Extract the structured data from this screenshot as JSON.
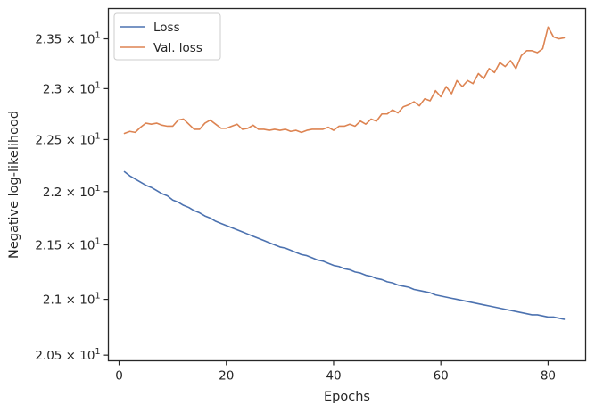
{
  "chart_data": {
    "type": "line",
    "title": "",
    "xlabel": "Epochs",
    "ylabel": "Negative log-likelihood",
    "xlim": [
      -2,
      87
    ],
    "ylim": [
      20.45,
      23.81
    ],
    "y_scale": "log",
    "grid": false,
    "legend_position": "top-left",
    "x_ticks": [
      {
        "value": 0,
        "label": "0"
      },
      {
        "value": 20,
        "label": "20"
      },
      {
        "value": 40,
        "label": "40"
      },
      {
        "value": 60,
        "label": "60"
      },
      {
        "value": 80,
        "label": "80"
      }
    ],
    "y_ticks": [
      {
        "value": 20.5,
        "mantissa": "2.05",
        "base": "10",
        "exp": "1"
      },
      {
        "value": 21.0,
        "mantissa": "2.1",
        "base": "10",
        "exp": "1"
      },
      {
        "value": 21.5,
        "mantissa": "2.15",
        "base": "10",
        "exp": "1"
      },
      {
        "value": 22.0,
        "mantissa": "2.2",
        "base": "10",
        "exp": "1"
      },
      {
        "value": 22.5,
        "mantissa": "2.25",
        "base": "10",
        "exp": "1"
      },
      {
        "value": 23.0,
        "mantissa": "2.3",
        "base": "10",
        "exp": "1"
      },
      {
        "value": 23.5,
        "mantissa": "2.35",
        "base": "10",
        "exp": "1"
      }
    ],
    "series": [
      {
        "name": "Loss",
        "color": "#4c72b0",
        "x": [
          1,
          2,
          3,
          4,
          5,
          6,
          7,
          8,
          9,
          10,
          11,
          12,
          13,
          14,
          15,
          16,
          17,
          18,
          19,
          20,
          21,
          22,
          23,
          24,
          25,
          26,
          27,
          28,
          29,
          30,
          31,
          32,
          33,
          34,
          35,
          36,
          37,
          38,
          39,
          40,
          41,
          42,
          43,
          44,
          45,
          46,
          47,
          48,
          49,
          50,
          51,
          52,
          53,
          54,
          55,
          56,
          57,
          58,
          59,
          60,
          61,
          62,
          63,
          64,
          65,
          66,
          67,
          68,
          69,
          70,
          71,
          72,
          73,
          74,
          75,
          76,
          77,
          78,
          79,
          80,
          81,
          82,
          83
        ],
        "values": [
          22.19,
          22.15,
          22.12,
          22.09,
          22.06,
          22.04,
          22.01,
          21.98,
          21.96,
          21.92,
          21.9,
          21.87,
          21.85,
          21.82,
          21.8,
          21.77,
          21.75,
          21.72,
          21.7,
          21.68,
          21.66,
          21.64,
          21.62,
          21.6,
          21.58,
          21.56,
          21.54,
          21.52,
          21.5,
          21.48,
          21.47,
          21.45,
          21.43,
          21.41,
          21.4,
          21.38,
          21.36,
          21.35,
          21.33,
          21.31,
          21.3,
          21.28,
          21.27,
          21.25,
          21.24,
          21.22,
          21.21,
          21.19,
          21.18,
          21.16,
          21.15,
          21.13,
          21.12,
          21.11,
          21.09,
          21.08,
          21.07,
          21.06,
          21.04,
          21.03,
          21.02,
          21.01,
          21.0,
          20.99,
          20.98,
          20.97,
          20.96,
          20.95,
          20.94,
          20.93,
          20.92,
          20.91,
          20.9,
          20.89,
          20.88,
          20.87,
          20.86,
          20.86,
          20.85,
          20.84,
          20.84,
          20.83,
          20.82
        ]
      },
      {
        "name": "Val. loss",
        "color": "#dd8452",
        "x": [
          1,
          2,
          3,
          4,
          5,
          6,
          7,
          8,
          9,
          10,
          11,
          12,
          13,
          14,
          15,
          16,
          17,
          18,
          19,
          20,
          21,
          22,
          23,
          24,
          25,
          26,
          27,
          28,
          29,
          30,
          31,
          32,
          33,
          34,
          35,
          36,
          37,
          38,
          39,
          40,
          41,
          42,
          43,
          44,
          45,
          46,
          47,
          48,
          49,
          50,
          51,
          52,
          53,
          54,
          55,
          56,
          57,
          58,
          59,
          60,
          61,
          62,
          63,
          64,
          65,
          66,
          67,
          68,
          69,
          70,
          71,
          72,
          73,
          74,
          75,
          76,
          77,
          78,
          79,
          80,
          81,
          82,
          83
        ],
        "values": [
          22.56,
          22.58,
          22.57,
          22.62,
          22.66,
          22.65,
          22.66,
          22.64,
          22.63,
          22.63,
          22.69,
          22.7,
          22.65,
          22.6,
          22.6,
          22.66,
          22.69,
          22.65,
          22.61,
          22.61,
          22.63,
          22.65,
          22.6,
          22.61,
          22.64,
          22.6,
          22.6,
          22.59,
          22.6,
          22.59,
          22.6,
          22.58,
          22.59,
          22.57,
          22.59,
          22.6,
          22.6,
          22.6,
          22.62,
          22.59,
          22.63,
          22.63,
          22.65,
          22.63,
          22.68,
          22.65,
          22.7,
          22.68,
          22.75,
          22.75,
          22.79,
          22.76,
          22.82,
          22.84,
          22.87,
          22.83,
          22.9,
          22.88,
          22.98,
          22.92,
          23.02,
          22.95,
          23.08,
          23.02,
          23.08,
          23.05,
          23.15,
          23.1,
          23.2,
          23.16,
          23.26,
          23.22,
          23.28,
          23.2,
          23.33,
          23.38,
          23.38,
          23.36,
          23.4,
          23.62,
          23.52,
          23.5,
          23.51
        ]
      }
    ]
  }
}
